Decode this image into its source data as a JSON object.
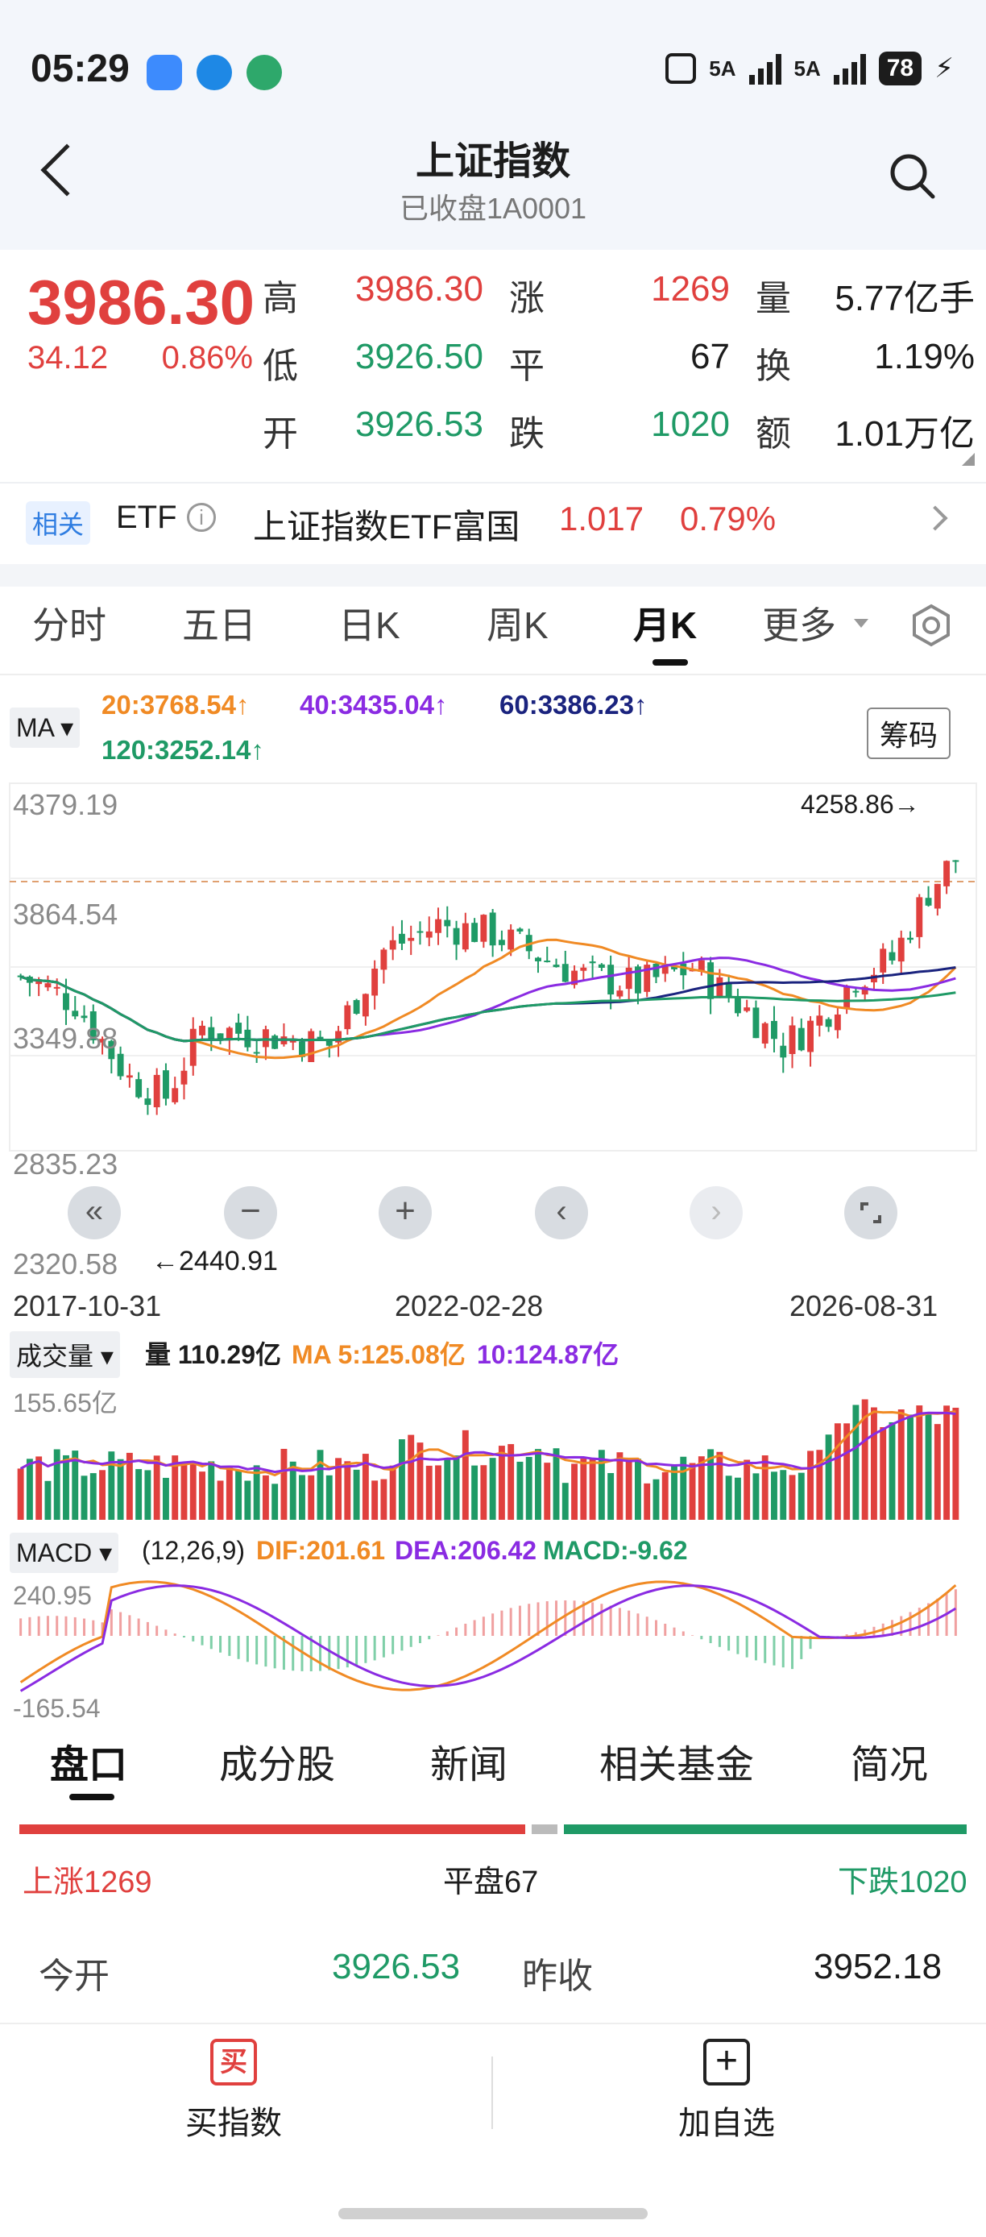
{
  "status": {
    "time": "05:29",
    "net1": "5A",
    "net2": "5A",
    "battery": "78"
  },
  "header": {
    "title": "上证指数",
    "subtitle": "已收盘1A0001"
  },
  "quote": {
    "price": "3986.30",
    "change": "34.12",
    "change_pct": "0.86%",
    "high_label": "高",
    "high": "3986.30",
    "low_label": "低",
    "low": "3926.50",
    "open_label": "开",
    "open": "3926.53",
    "up_label": "涨",
    "up": "1269",
    "flat_label": "平",
    "flat": "67",
    "down_label": "跌",
    "down": "1020",
    "vol_label": "量",
    "vol": "5.77亿手",
    "turnover_label": "换",
    "turnover": "1.19%",
    "amount_label": "额",
    "amount": "1.01万亿"
  },
  "etf": {
    "badge": "相关",
    "type": "ETF",
    "name": "上证指数ETF富国",
    "price": "1.017",
    "pct": "0.79%"
  },
  "period_tabs": [
    "分时",
    "五日",
    "日K",
    "周K",
    "月K",
    "更多"
  ],
  "ma": {
    "label": "MA",
    "ma20": "20:3768.54↑",
    "ma40": "40:3435.04↑",
    "ma60": "60:3386.23↑",
    "ma120": "120:3252.14↑",
    "chips": "筹码"
  },
  "kline": {
    "y_top": "4379.19",
    "y_2": "3864.54",
    "y_3": "3349.88",
    "y_4": "2835.23",
    "y_bottom": "2320.58",
    "max_label": "4258.86→",
    "min_label": "←2440.91",
    "date_left": "2017-10-31",
    "date_mid": "2022-02-28",
    "date_right": "2026-08-31"
  },
  "volume": {
    "label": "成交量",
    "vol": "量 110.29亿",
    "ma5": "MA 5:125.08亿",
    "ma10": "10:124.87亿",
    "y_top": "155.65亿"
  },
  "macd": {
    "label": "MACD",
    "params": "(12,26,9)",
    "dif": "DIF:201.61",
    "dea": "DEA:206.42",
    "macd": "MACD:-9.62",
    "y_top": "240.95",
    "y_bottom": "-165.54"
  },
  "bottom_tabs": [
    "盘口",
    "成分股",
    "新闻",
    "相关基金",
    "简况"
  ],
  "breadth": {
    "up": "上涨1269",
    "flat": "平盘67",
    "down": "下跌1020"
  },
  "open_row": {
    "open_label": "今开",
    "open": "3926.53",
    "prev_label": "昨收",
    "prev": "3952.18"
  },
  "footer": {
    "buy": "买指数",
    "buy_icon": "买",
    "add": "加自选"
  },
  "colors": {
    "up": "#e0403e",
    "down": "#1f9a66",
    "ma20": "#f08a24",
    "ma40": "#8a2be2",
    "ma60": "#1a237e",
    "ma120": "#1f9a66"
  }
}
